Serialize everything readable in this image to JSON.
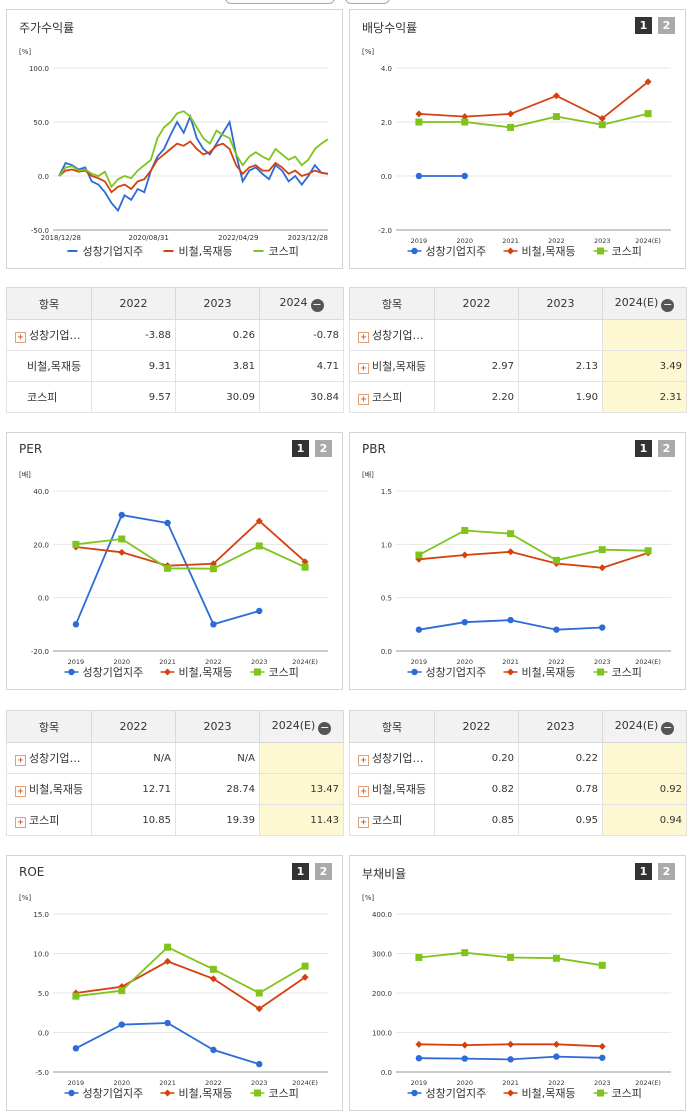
{
  "panels": {
    "stock_return": {
      "title": "주가수익률",
      "unit": "[%]",
      "y_ticks": [
        "100.0",
        "50.0",
        "0.0",
        "-50.0"
      ],
      "x_ticks": [
        "2018/12/28",
        "2020/08/31",
        "2022/04/29",
        "2023/12/28"
      ],
      "legend": [
        "성창기업지주",
        "비철,목재등",
        "코스피"
      ]
    },
    "dividend": {
      "title": "배당수익률",
      "btn1": "1",
      "btn2": "2",
      "unit": "[%]",
      "y_ticks": [
        "4.0",
        "2.0",
        "0.0",
        "-2.0"
      ],
      "x_ticks": [
        "2019",
        "2020",
        "2021",
        "2022",
        "2023",
        "2024(E)"
      ],
      "legend": [
        "성창기업지주",
        "비철,목재등",
        "코스피"
      ]
    },
    "per": {
      "title": "PER",
      "btn1": "1",
      "btn2": "2",
      "unit": "[배]",
      "y_ticks": [
        "40.0",
        "20.0",
        "0.0",
        "-20.0"
      ],
      "x_ticks": [
        "2019",
        "2020",
        "2021",
        "2022",
        "2023",
        "2024(E)"
      ],
      "legend": [
        "성창기업지주",
        "비철,목재등",
        "코스피"
      ]
    },
    "pbr": {
      "title": "PBR",
      "btn1": "1",
      "btn2": "2",
      "unit": "[배]",
      "y_ticks": [
        "1.5",
        "1.0",
        "0.5",
        "0.0"
      ],
      "x_ticks": [
        "2019",
        "2020",
        "2021",
        "2022",
        "2023",
        "2024(E)"
      ],
      "legend": [
        "성창기업지주",
        "비철,목재등",
        "코스피"
      ]
    },
    "roe": {
      "title": "ROE",
      "btn1": "1",
      "btn2": "2",
      "unit": "[%]",
      "y_ticks": [
        "15.0",
        "10.0",
        "5.0",
        "0.0",
        "-5.0"
      ],
      "x_ticks": [
        "2019",
        "2020",
        "2021",
        "2022",
        "2023",
        "2024(E)"
      ],
      "legend": [
        "성창기업지주",
        "비철,목재등",
        "코스피"
      ]
    },
    "debt": {
      "title": "부채비율",
      "btn1": "1",
      "btn2": "2",
      "unit": "[%]",
      "y_ticks": [
        "400.0",
        "300.0",
        "200.0",
        "100.0",
        "0.0"
      ],
      "x_ticks": [
        "2019",
        "2020",
        "2021",
        "2022",
        "2023",
        "2024(E)"
      ],
      "legend": [
        "성창기업지주",
        "비철,목재등",
        "코스피"
      ]
    }
  },
  "tables": {
    "stock_return": {
      "head": [
        "항목",
        "2022",
        "2023",
        "2024"
      ],
      "rows": [
        {
          "name": "성창기업…",
          "v": [
            "-3.88",
            "0.26",
            "-0.78"
          ]
        },
        {
          "name": "비철,목재등",
          "v": [
            "9.31",
            "3.81",
            "4.71"
          ]
        },
        {
          "name": "코스피",
          "v": [
            "9.57",
            "30.09",
            "30.84"
          ]
        }
      ]
    },
    "dividend": {
      "head": [
        "항목",
        "2022",
        "2023",
        "2024(E)"
      ],
      "rows": [
        {
          "name": "성창기업…",
          "v": [
            "",
            "",
            ""
          ]
        },
        {
          "name": "비철,목재등",
          "v": [
            "2.97",
            "2.13",
            "3.49"
          ]
        },
        {
          "name": "코스피",
          "v": [
            "2.20",
            "1.90",
            "2.31"
          ]
        }
      ]
    },
    "per": {
      "head": [
        "항목",
        "2022",
        "2023",
        "2024(E)"
      ],
      "rows": [
        {
          "name": "성창기업…",
          "v": [
            "N/A",
            "N/A",
            ""
          ]
        },
        {
          "name": "비철,목재등",
          "v": [
            "12.71",
            "28.74",
            "13.47"
          ]
        },
        {
          "name": "코스피",
          "v": [
            "10.85",
            "19.39",
            "11.43"
          ]
        }
      ]
    },
    "pbr": {
      "head": [
        "항목",
        "2022",
        "2023",
        "2024(E)"
      ],
      "rows": [
        {
          "name": "성창기업…",
          "v": [
            "0.20",
            "0.22",
            ""
          ]
        },
        {
          "name": "비철,목재등",
          "v": [
            "0.82",
            "0.78",
            "0.92"
          ]
        },
        {
          "name": "코스피",
          "v": [
            "0.85",
            "0.95",
            "0.94"
          ]
        }
      ]
    }
  },
  "colors": {
    "company": "#2d6bd6",
    "industry": "#d4410f",
    "kospi": "#80c31c"
  },
  "chart_data": [
    {
      "id": "stock_return",
      "type": "line",
      "title": "주가수익률",
      "ylim": [
        -50,
        100
      ],
      "x_range": [
        "2018/12/28",
        "2023/12/28"
      ],
      "series": [
        {
          "name": "성창기업지주",
          "values": [
            0,
            12,
            10,
            6,
            8,
            -5,
            -8,
            -15,
            -25,
            -32,
            -18,
            -22,
            -12,
            -15,
            5,
            18,
            25,
            38,
            50,
            40,
            55,
            35,
            25,
            20,
            30,
            40,
            50,
            20,
            -5,
            5,
            8,
            2,
            -3,
            10,
            5,
            -5,
            0,
            -8,
            0,
            10,
            3,
            2
          ]
        },
        {
          "name": "비철,목재등",
          "values": [
            0,
            5,
            6,
            4,
            5,
            0,
            -2,
            -5,
            -15,
            -10,
            -8,
            -12,
            -5,
            -3,
            5,
            15,
            20,
            25,
            30,
            28,
            32,
            25,
            20,
            22,
            28,
            30,
            25,
            10,
            2,
            8,
            10,
            5,
            5,
            12,
            8,
            2,
            5,
            0,
            2,
            5,
            3,
            2
          ]
        },
        {
          "name": "코스피",
          "values": [
            0,
            8,
            9,
            5,
            6,
            2,
            0,
            4,
            -10,
            -3,
            0,
            -2,
            5,
            10,
            15,
            35,
            45,
            50,
            58,
            60,
            55,
            45,
            35,
            30,
            42,
            38,
            35,
            20,
            10,
            18,
            22,
            18,
            15,
            25,
            20,
            15,
            18,
            10,
            15,
            25,
            30,
            34
          ]
        }
      ]
    },
    {
      "id": "dividend",
      "type": "line",
      "title": "배당수익률",
      "categories": [
        "2019",
        "2020",
        "2021",
        "2022",
        "2023",
        "2024(E)"
      ],
      "ylim": [
        -2,
        4
      ],
      "series": [
        {
          "name": "성창기업지주",
          "values": [
            0.0,
            0.0,
            null,
            null,
            null,
            null
          ]
        },
        {
          "name": "비철,목재등",
          "values": [
            2.3,
            2.2,
            2.3,
            2.97,
            2.13,
            3.49
          ]
        },
        {
          "name": "코스피",
          "values": [
            2.0,
            2.0,
            1.8,
            2.2,
            1.9,
            2.31
          ]
        }
      ]
    },
    {
      "id": "per",
      "type": "line",
      "title": "PER",
      "categories": [
        "2019",
        "2020",
        "2021",
        "2022",
        "2023",
        "2024(E)"
      ],
      "ylim": [
        -20,
        40
      ],
      "series": [
        {
          "name": "성창기업지주",
          "values": [
            -10,
            31,
            28,
            -10,
            -5,
            null
          ]
        },
        {
          "name": "비철,목재등",
          "values": [
            19,
            17,
            12,
            12.71,
            28.74,
            13.47
          ]
        },
        {
          "name": "코스피",
          "values": [
            20,
            22,
            11,
            10.85,
            19.39,
            11.43
          ]
        }
      ]
    },
    {
      "id": "pbr",
      "type": "line",
      "title": "PBR",
      "categories": [
        "2019",
        "2020",
        "2021",
        "2022",
        "2023",
        "2024(E)"
      ],
      "ylim": [
        0,
        1.5
      ],
      "series": [
        {
          "name": "성창기업지주",
          "values": [
            0.2,
            0.27,
            0.29,
            0.2,
            0.22,
            null
          ]
        },
        {
          "name": "비철,목재등",
          "values": [
            0.86,
            0.9,
            0.93,
            0.82,
            0.78,
            0.92
          ]
        },
        {
          "name": "코스피",
          "values": [
            0.9,
            1.13,
            1.1,
            0.85,
            0.95,
            0.94
          ]
        }
      ]
    },
    {
      "id": "roe",
      "type": "line",
      "title": "ROE",
      "categories": [
        "2019",
        "2020",
        "2021",
        "2022",
        "2023",
        "2024(E)"
      ],
      "ylim": [
        -5,
        15
      ],
      "series": [
        {
          "name": "성창기업지주",
          "values": [
            -2,
            1,
            1.2,
            -2.2,
            -4,
            null
          ]
        },
        {
          "name": "비철,목재등",
          "values": [
            5,
            5.8,
            9,
            6.8,
            3,
            7
          ]
        },
        {
          "name": "코스피",
          "values": [
            4.6,
            5.3,
            10.8,
            8,
            5,
            8.4
          ]
        }
      ]
    },
    {
      "id": "debt",
      "type": "line",
      "title": "부채비율",
      "categories": [
        "2019",
        "2020",
        "2021",
        "2022",
        "2023",
        "2024(E)"
      ],
      "ylim": [
        0,
        400
      ],
      "series": [
        {
          "name": "성창기업지주",
          "values": [
            35,
            34,
            32,
            39,
            36,
            null
          ]
        },
        {
          "name": "비철,목재등",
          "values": [
            70,
            68,
            70,
            70,
            65,
            null
          ]
        },
        {
          "name": "코스피",
          "values": [
            290,
            302,
            290,
            288,
            270,
            null
          ]
        }
      ]
    }
  ]
}
